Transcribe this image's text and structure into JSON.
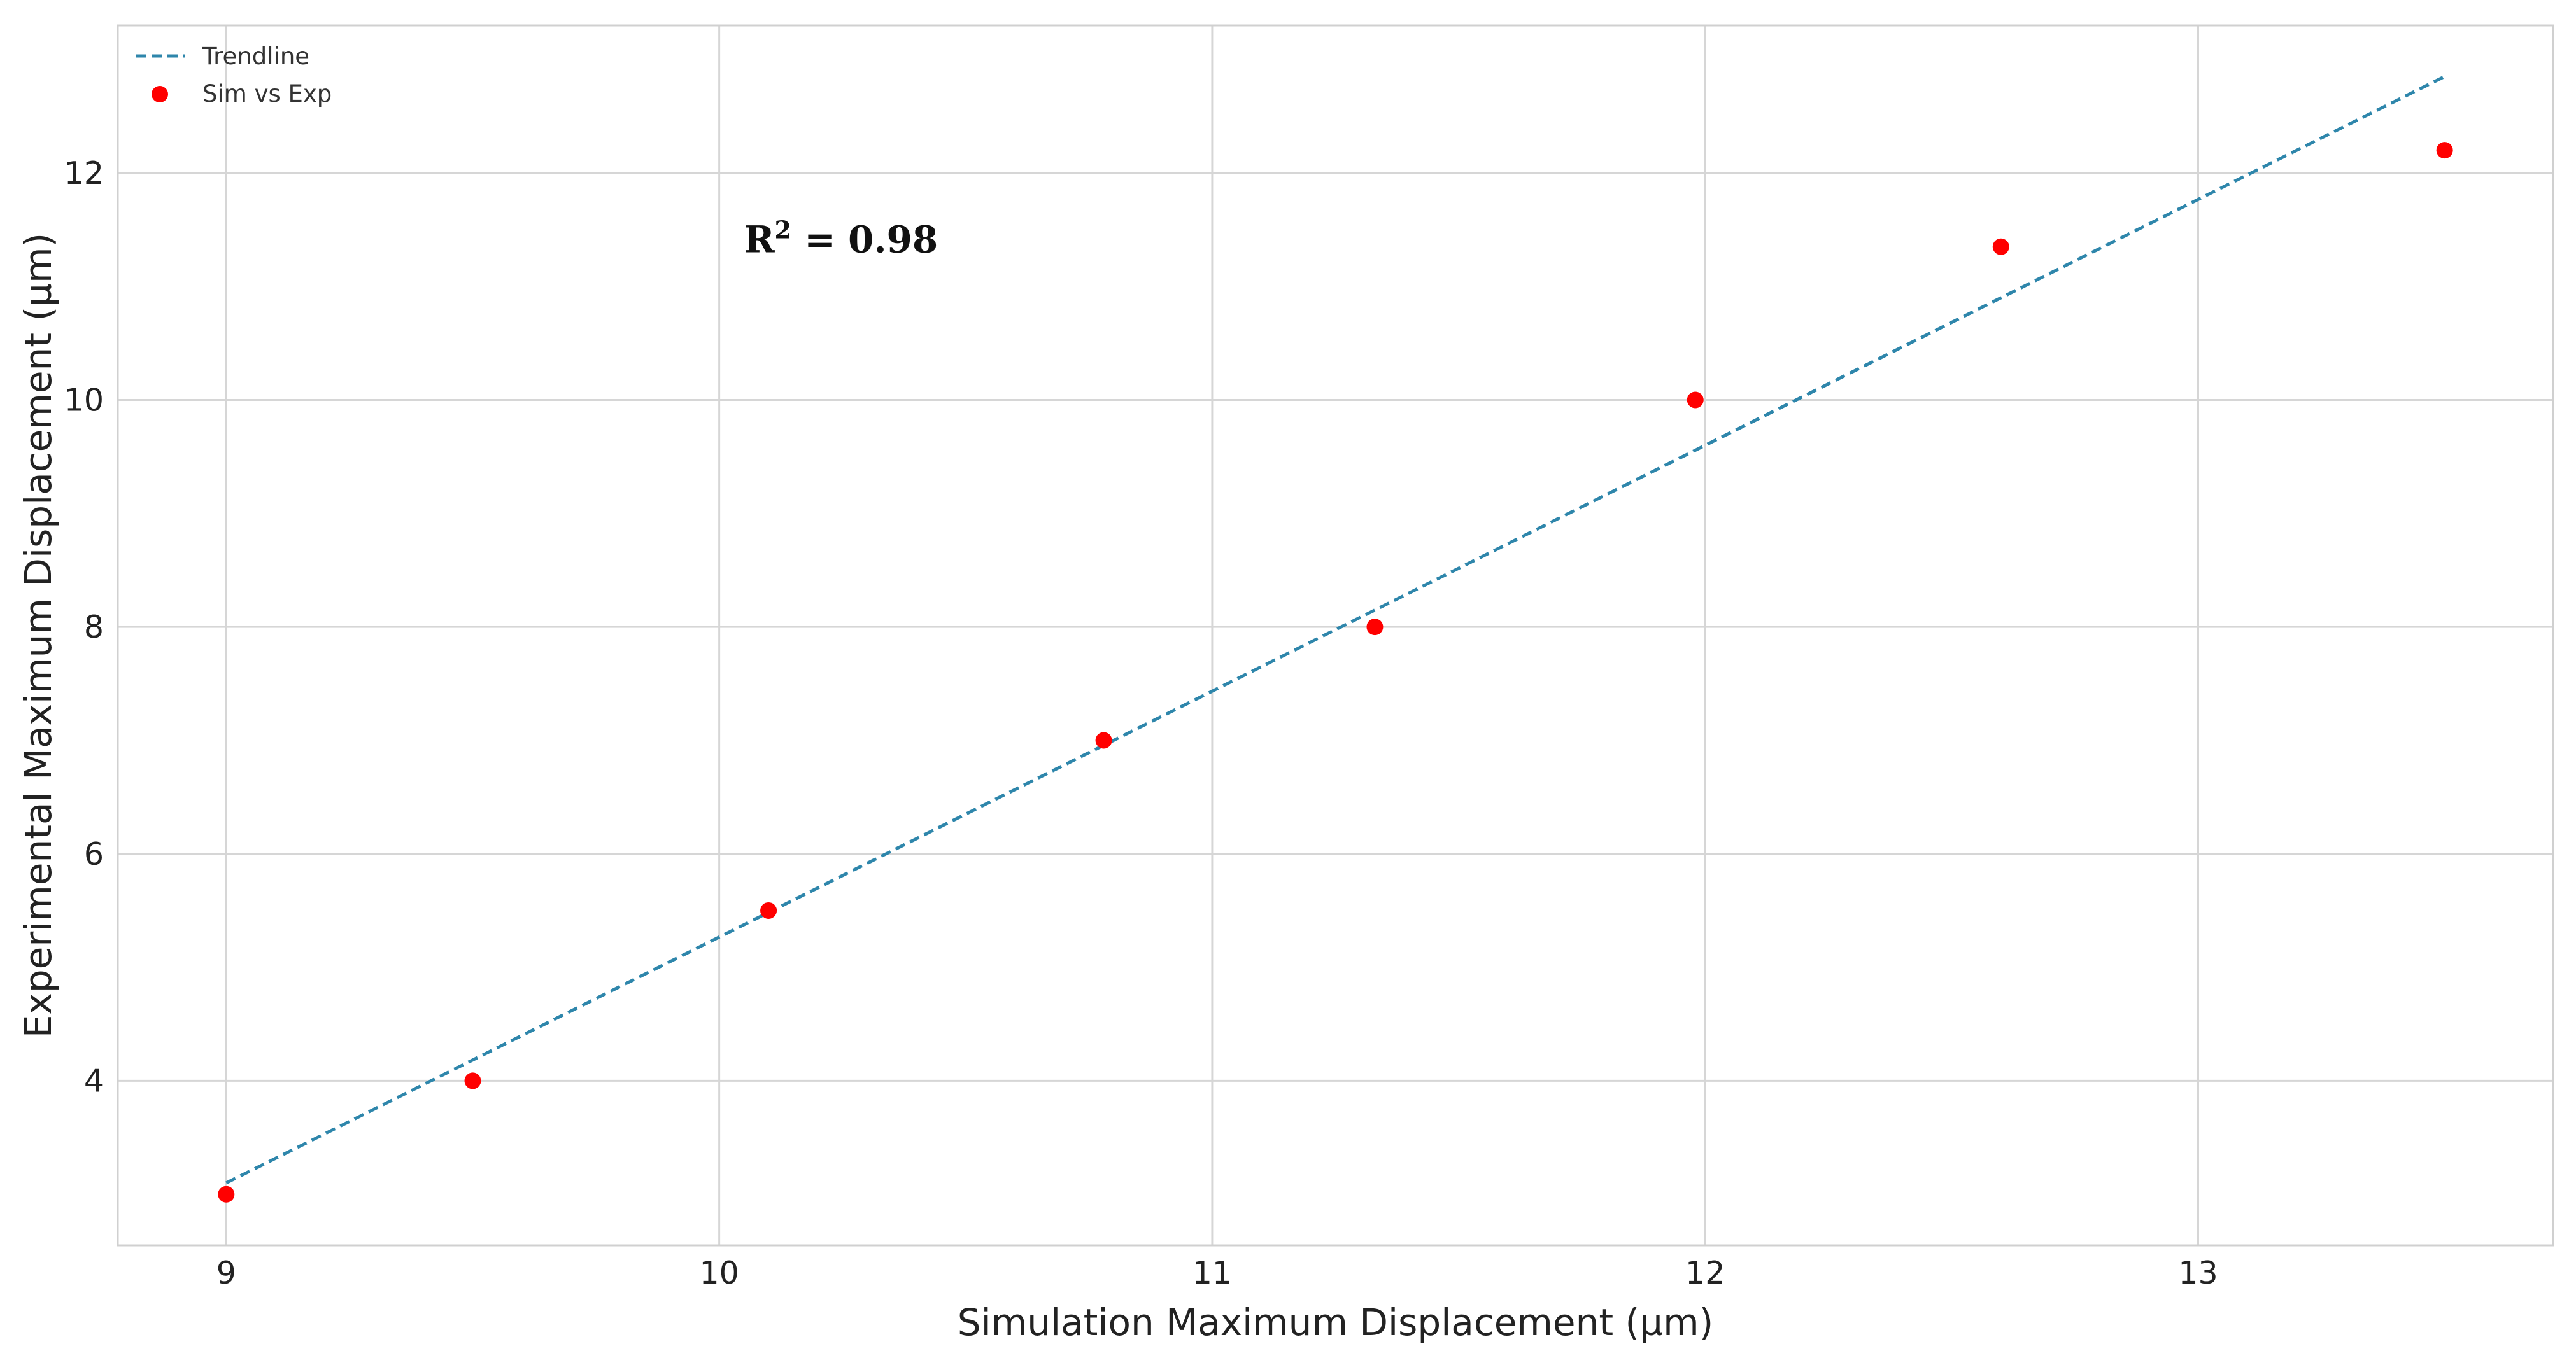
{
  "chart_data": {
    "type": "scatter",
    "title": "",
    "xlabel": "Simulation Maximum Displacement (µm)",
    "ylabel": "Experimental Maximum Displacement (µm)",
    "xlim": [
      8.78,
      13.72
    ],
    "ylim": [
      2.55,
      13.3
    ],
    "xticks": [
      9,
      10,
      11,
      12,
      13
    ],
    "yticks": [
      4,
      6,
      8,
      10,
      12
    ],
    "grid": true,
    "legend_position": "top-left",
    "series": [
      {
        "name": "Sim vs Exp",
        "kind": "scatter",
        "color": "#ff0000",
        "points": [
          {
            "x": 9.0,
            "y": 3.0
          },
          {
            "x": 9.5,
            "y": 4.0
          },
          {
            "x": 10.1,
            "y": 5.5
          },
          {
            "x": 10.78,
            "y": 7.0
          },
          {
            "x": 11.33,
            "y": 8.0
          },
          {
            "x": 11.98,
            "y": 10.0
          },
          {
            "x": 12.6,
            "y": 11.35
          },
          {
            "x": 13.5,
            "y": 12.2
          }
        ]
      },
      {
        "name": "Trendline",
        "kind": "line",
        "style": "dashed",
        "color": "#2e86ab",
        "points": [
          {
            "x": 9.0,
            "y": 3.1
          },
          {
            "x": 13.5,
            "y": 12.85
          }
        ]
      }
    ],
    "annotation": {
      "base": "R",
      "superscript": "2",
      "rest": " = 0.98",
      "x": 10.05,
      "y": 11.3
    }
  }
}
